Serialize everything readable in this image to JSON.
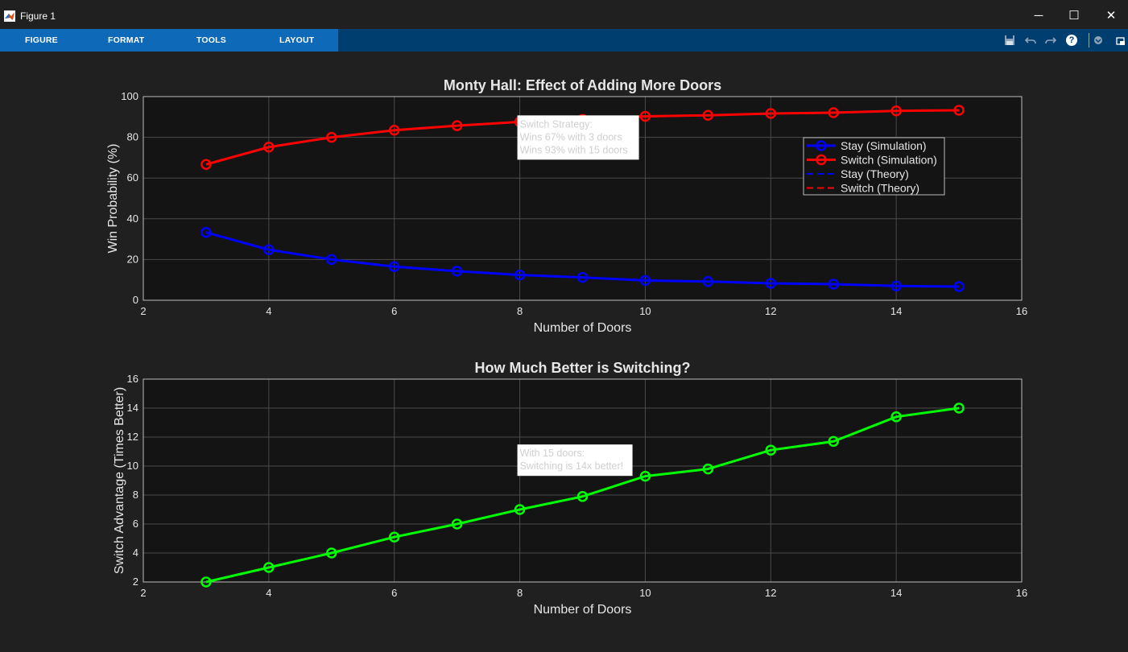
{
  "window": {
    "title": "Figure 1",
    "minimize_glyph": "─",
    "maximize_glyph": "☐",
    "close_glyph": "✕"
  },
  "toolstrip": {
    "tabs": [
      "FIGURE",
      "FORMAT",
      "TOOLS",
      "LAYOUT"
    ],
    "icons": [
      "save-icon",
      "undo-icon",
      "redo-icon",
      "help-icon",
      "collapse-icon",
      "dock-icon"
    ],
    "help_glyph": "?"
  },
  "colors": {
    "background": "#202020",
    "axes_background": "#141414",
    "stay": "#0000ff",
    "switch": "#ff0000",
    "advantage": "#00ff00",
    "toolstrip_tab": "#0e6ab8",
    "toolstrip": "#003e70"
  },
  "chart_data": [
    {
      "type": "line",
      "title": "Monty Hall: Effect of Adding More Doors",
      "xlabel": "Number of Doors",
      "ylabel": "Win Probability (%)",
      "xlim": [
        2,
        16
      ],
      "ylim": [
        0,
        100
      ],
      "xticks": [
        2,
        4,
        6,
        8,
        10,
        12,
        14,
        16
      ],
      "yticks": [
        0,
        20,
        40,
        60,
        80,
        100
      ],
      "grid": true,
      "legend_position": "top-right",
      "legend": [
        "Stay (Simulation)",
        "Switch (Simulation)",
        "Stay (Theory)",
        "Switch (Theory)"
      ],
      "x": [
        3,
        4,
        5,
        6,
        7,
        8,
        9,
        10,
        11,
        12,
        13,
        14,
        15
      ],
      "series": [
        {
          "name": "Stay (Simulation)",
          "color": "#0000ff",
          "marker": "circle",
          "style": "solid",
          "values": [
            33.3,
            24.8,
            20.0,
            16.5,
            14.3,
            12.4,
            11.2,
            9.7,
            9.2,
            8.3,
            7.9,
            7.0,
            6.7
          ]
        },
        {
          "name": "Switch (Simulation)",
          "color": "#ff0000",
          "marker": "circle",
          "style": "solid",
          "values": [
            66.7,
            75.2,
            80.0,
            83.5,
            85.7,
            87.6,
            88.8,
            90.3,
            90.8,
            91.7,
            92.1,
            93.0,
            93.3
          ]
        },
        {
          "name": "Stay (Theory)",
          "color": "#0000ff",
          "marker": "none",
          "style": "dashed",
          "values": [
            33.3,
            25.0,
            20.0,
            16.7,
            14.3,
            12.5,
            11.1,
            10.0,
            9.1,
            8.3,
            7.7,
            7.1,
            6.7
          ]
        },
        {
          "name": "Switch (Theory)",
          "color": "#ff0000",
          "marker": "none",
          "style": "dashed",
          "values": [
            66.7,
            75.0,
            80.0,
            83.3,
            85.7,
            87.5,
            88.9,
            90.0,
            90.9,
            91.7,
            92.3,
            92.9,
            93.3
          ]
        }
      ],
      "annotation": {
        "lines": [
          "Switch Strategy:",
          "Wins 67% with 3 doors",
          "Wins 93% with 15 doors"
        ],
        "anchor": [
          8,
          88
        ]
      }
    },
    {
      "type": "line",
      "title": "How Much Better is Switching?",
      "xlabel": "Number of Doors",
      "ylabel": "Switch Advantage (Times Better)",
      "xlim": [
        2,
        16
      ],
      "ylim": [
        2,
        16
      ],
      "xticks": [
        2,
        4,
        6,
        8,
        10,
        12,
        14,
        16
      ],
      "yticks": [
        2,
        4,
        6,
        8,
        10,
        12,
        14,
        16
      ],
      "grid": true,
      "x": [
        3,
        4,
        5,
        6,
        7,
        8,
        9,
        10,
        11,
        12,
        13,
        14,
        15
      ],
      "series": [
        {
          "color": "#00ff00",
          "marker": "circle",
          "style": "solid",
          "values": [
            2.0,
            3.0,
            4.0,
            5.1,
            6.0,
            7.0,
            7.9,
            9.3,
            9.8,
            11.1,
            11.7,
            13.4,
            14.0
          ]
        }
      ],
      "annotation": {
        "lines": [
          "With 15 doors:",
          "Switching is 14x better!"
        ],
        "anchor": [
          8,
          11.1
        ]
      }
    }
  ]
}
